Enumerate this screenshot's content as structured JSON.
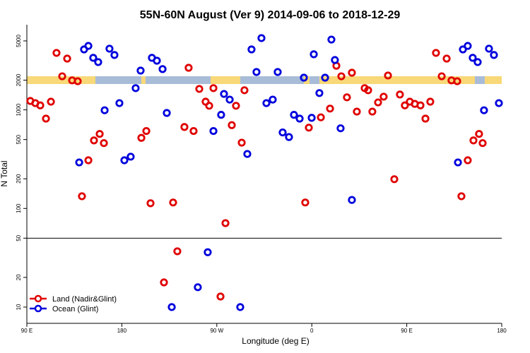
{
  "chart_data": {
    "type": "scatter",
    "title": "55N-60N August (Ver 9)   2014-09-06 to 2018-12-29",
    "x_label": "Longitude (deg E)",
    "y_label": "N Total",
    "log_y": true,
    "xlim": [
      90,
      540
    ],
    "xticks": [
      {
        "value": 90,
        "label": "90 E"
      },
      180,
      {
        "value": 270,
        "label": "90 W"
      },
      {
        "value": 360,
        "label": "0"
      },
      {
        "value": 450,
        "label": "90 E"
      },
      {
        "value": 540,
        "label": "180"
      }
    ],
    "ylim": [
      6.84,
      7300
    ],
    "yticks": [
      10,
      20,
      50,
      100,
      200,
      500,
      1000,
      2000,
      5000
    ],
    "hline": 50,
    "legend": "lower left",
    "series": [
      {
        "name": "Land (Nadir&Glint)",
        "color": "#e00000",
        "x": [
          93.3,
          98.0,
          102.7,
          108.1,
          112.8,
          118.1,
          123.5,
          128.2,
          132.9,
          138.2,
          142.2,
          148.3,
          153.6,
          159.0,
          163.0,
          198.5,
          203.2,
          207.2,
          219.9,
          228.6,
          232.6,
          239.3,
          243.3,
          248.0,
          253.4,
          259.4,
          262.8,
          266.8,
          273.5,
          278.2,
          284.2,
          288.2,
          293.6,
          296.2,
          353.8,
          357.2,
          368.6,
          377.3,
          383.3,
          388.0,
          393.3,
          398.0,
          402.7,
          410.1,
          413.4,
          417.4,
          422.8,
          428.1,
          432.2,
          438.2,
          443.5,
          448.2,
          452.9,
          457.6,
          463.0,
          467.7,
          472.3,
          477.7,
          483.1,
          487.8,
          492.4,
          497.8,
          501.8,
          507.8,
          513.2,
          518.5,
          521.9
        ],
        "values": [
          1230,
          1170,
          1110,
          815,
          1210,
          3780,
          2190,
          3310,
          1990,
          1950,
          133,
          308,
          490,
          570,
          460,
          520,
          610,
          113,
          17.8,
          115,
          36.8,
          670,
          2670,
          610,
          1630,
          1210,
          1100,
          1660,
          12.8,
          71,
          700,
          1100,
          465,
          1580,
          115,
          660,
          840,
          1030,
          2800,
          2190,
          1340,
          2380,
          960,
          1660,
          1580,
          960,
          1190,
          1360,
          2230,
          198,
          1430,
          1110,
          1210,
          1150,
          1110,
          815,
          1210,
          3780,
          2190,
          3310,
          1990,
          1950,
          133,
          308,
          490,
          570,
          460
        ]
      },
      {
        "name": "Ocean (Glint)",
        "color": "#0000dd",
        "x": [
          139.6,
          144.2,
          148.3,
          152.9,
          157.6,
          163.7,
          168.3,
          173.0,
          177.7,
          182.4,
          188.4,
          193.1,
          197.8,
          208.5,
          213.2,
          218.6,
          222.6,
          227.3,
          252.0,
          261.4,
          266.8,
          274.1,
          276.8,
          282.2,
          292.2,
          298.9,
          302.9,
          307.6,
          312.3,
          317.0,
          323.0,
          327.7,
          332.4,
          338.4,
          343.1,
          348.5,
          352.5,
          359.9,
          361.9,
          367.2,
          372.6,
          378.6,
          381.9,
          387.3,
          398.0,
          498.5,
          503.2,
          507.8,
          512.5,
          517.2,
          523.2,
          527.9,
          532.6,
          537.3
        ],
        "values": [
          293,
          4100,
          4450,
          3370,
          3050,
          990,
          4170,
          3600,
          1170,
          308,
          335,
          1660,
          2500,
          3370,
          3150,
          2590,
          930,
          10,
          15.9,
          36,
          610,
          890,
          1450,
          1270,
          10,
          357,
          4100,
          2420,
          5340,
          1170,
          1270,
          2420,
          590,
          530,
          890,
          815,
          2120,
          830,
          3660,
          1480,
          2120,
          5160,
          3200,
          650,
          122,
          293,
          4100,
          4450,
          3370,
          3050,
          990,
          4170,
          3600,
          1170
        ]
      }
    ]
  }
}
